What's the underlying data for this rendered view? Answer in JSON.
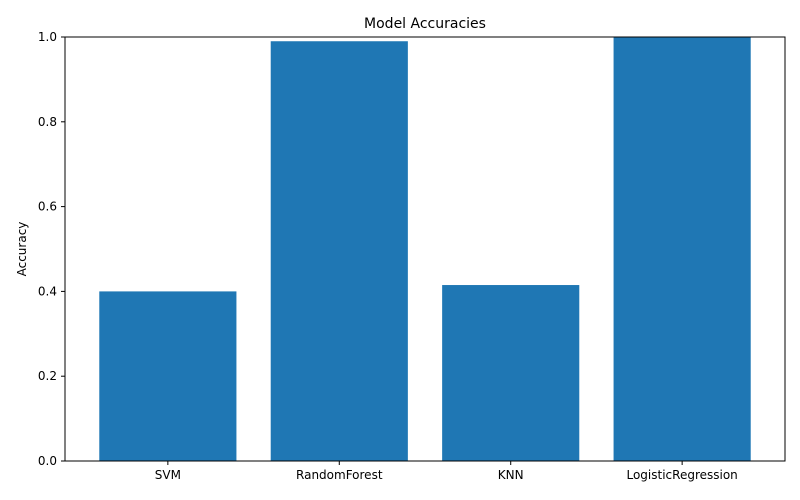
{
  "chart_data": {
    "type": "bar",
    "title": "Model Accuracies",
    "xlabel": "",
    "ylabel": "Accuracy",
    "categories": [
      "SVM",
      "RandomForest",
      "KNN",
      "LogisticRegression"
    ],
    "values": [
      0.4,
      0.99,
      0.415,
      1.0
    ],
    "ylim": [
      0,
      1.0
    ],
    "yticks": [
      "0.0",
      "0.2",
      "0.4",
      "0.6",
      "0.8",
      "1.0"
    ],
    "grid": false,
    "bar_color": "#1f77b4"
  }
}
